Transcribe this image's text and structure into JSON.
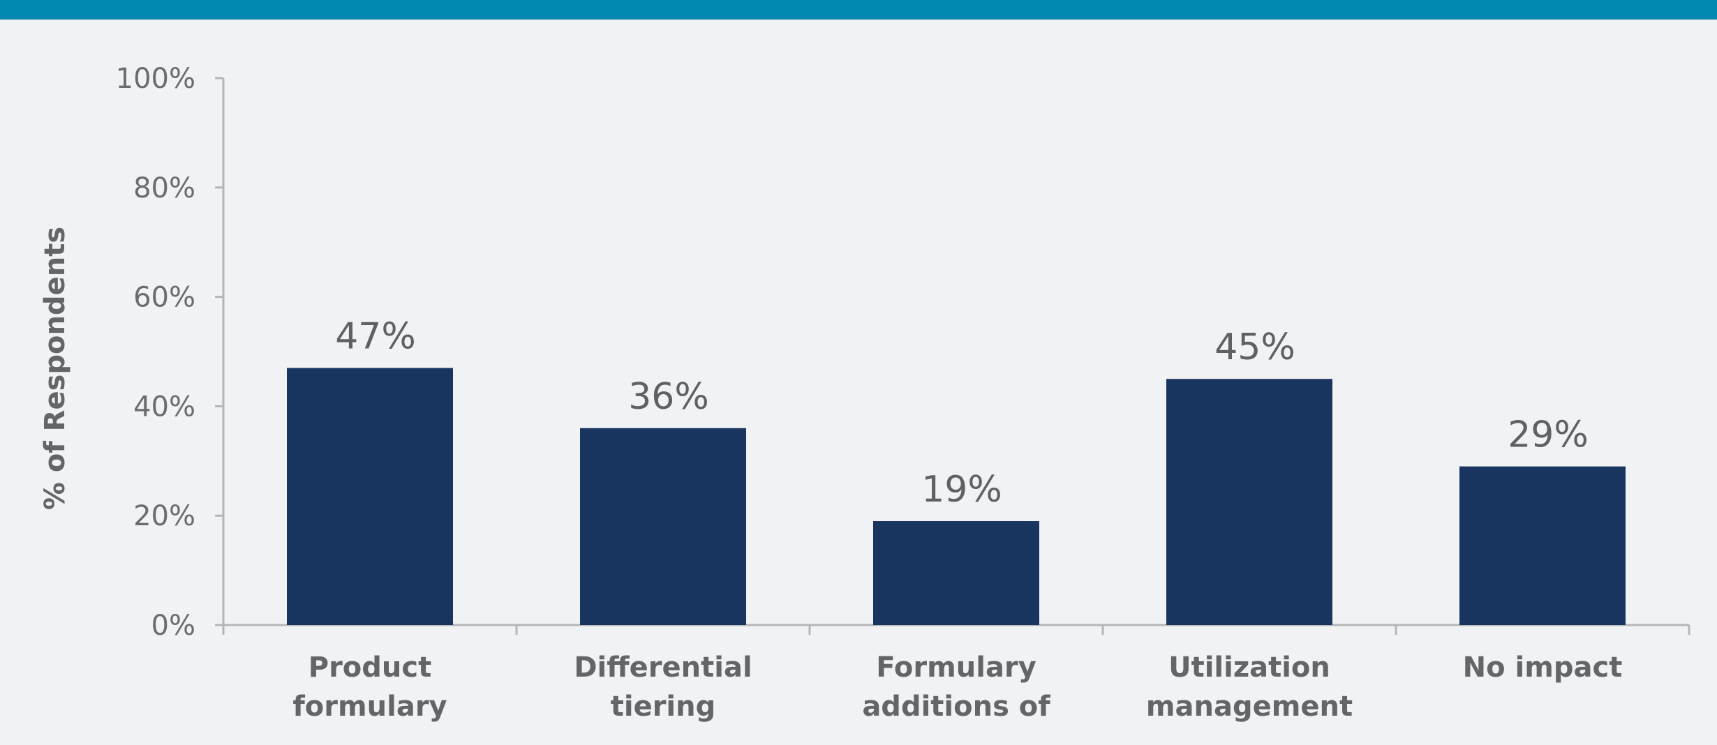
{
  "colors": {
    "top_bar": "#0088b0",
    "background": "#f1f2f4",
    "bar": "#183560",
    "axis": "#b4b5b8",
    "text": "#646569"
  },
  "chart_data": {
    "type": "bar",
    "categories": [
      [
        "Product",
        "formulary"
      ],
      [
        "Differential",
        "tiering"
      ],
      [
        "Formulary",
        "additions of"
      ],
      [
        "Utilization",
        "management"
      ],
      [
        "No impact"
      ]
    ],
    "values": [
      47,
      36,
      19,
      45,
      29
    ],
    "data_labels": [
      "47%",
      "36%",
      "19%",
      "45%",
      "29%"
    ],
    "ylabel": "% of Respondents",
    "ylim": [
      0,
      100
    ],
    "yticks": [
      0,
      20,
      40,
      60,
      80,
      100
    ],
    "ytick_labels": [
      "0%",
      "20%",
      "40%",
      "60%",
      "80%",
      "100%"
    ],
    "grid": false,
    "legend": "none"
  }
}
